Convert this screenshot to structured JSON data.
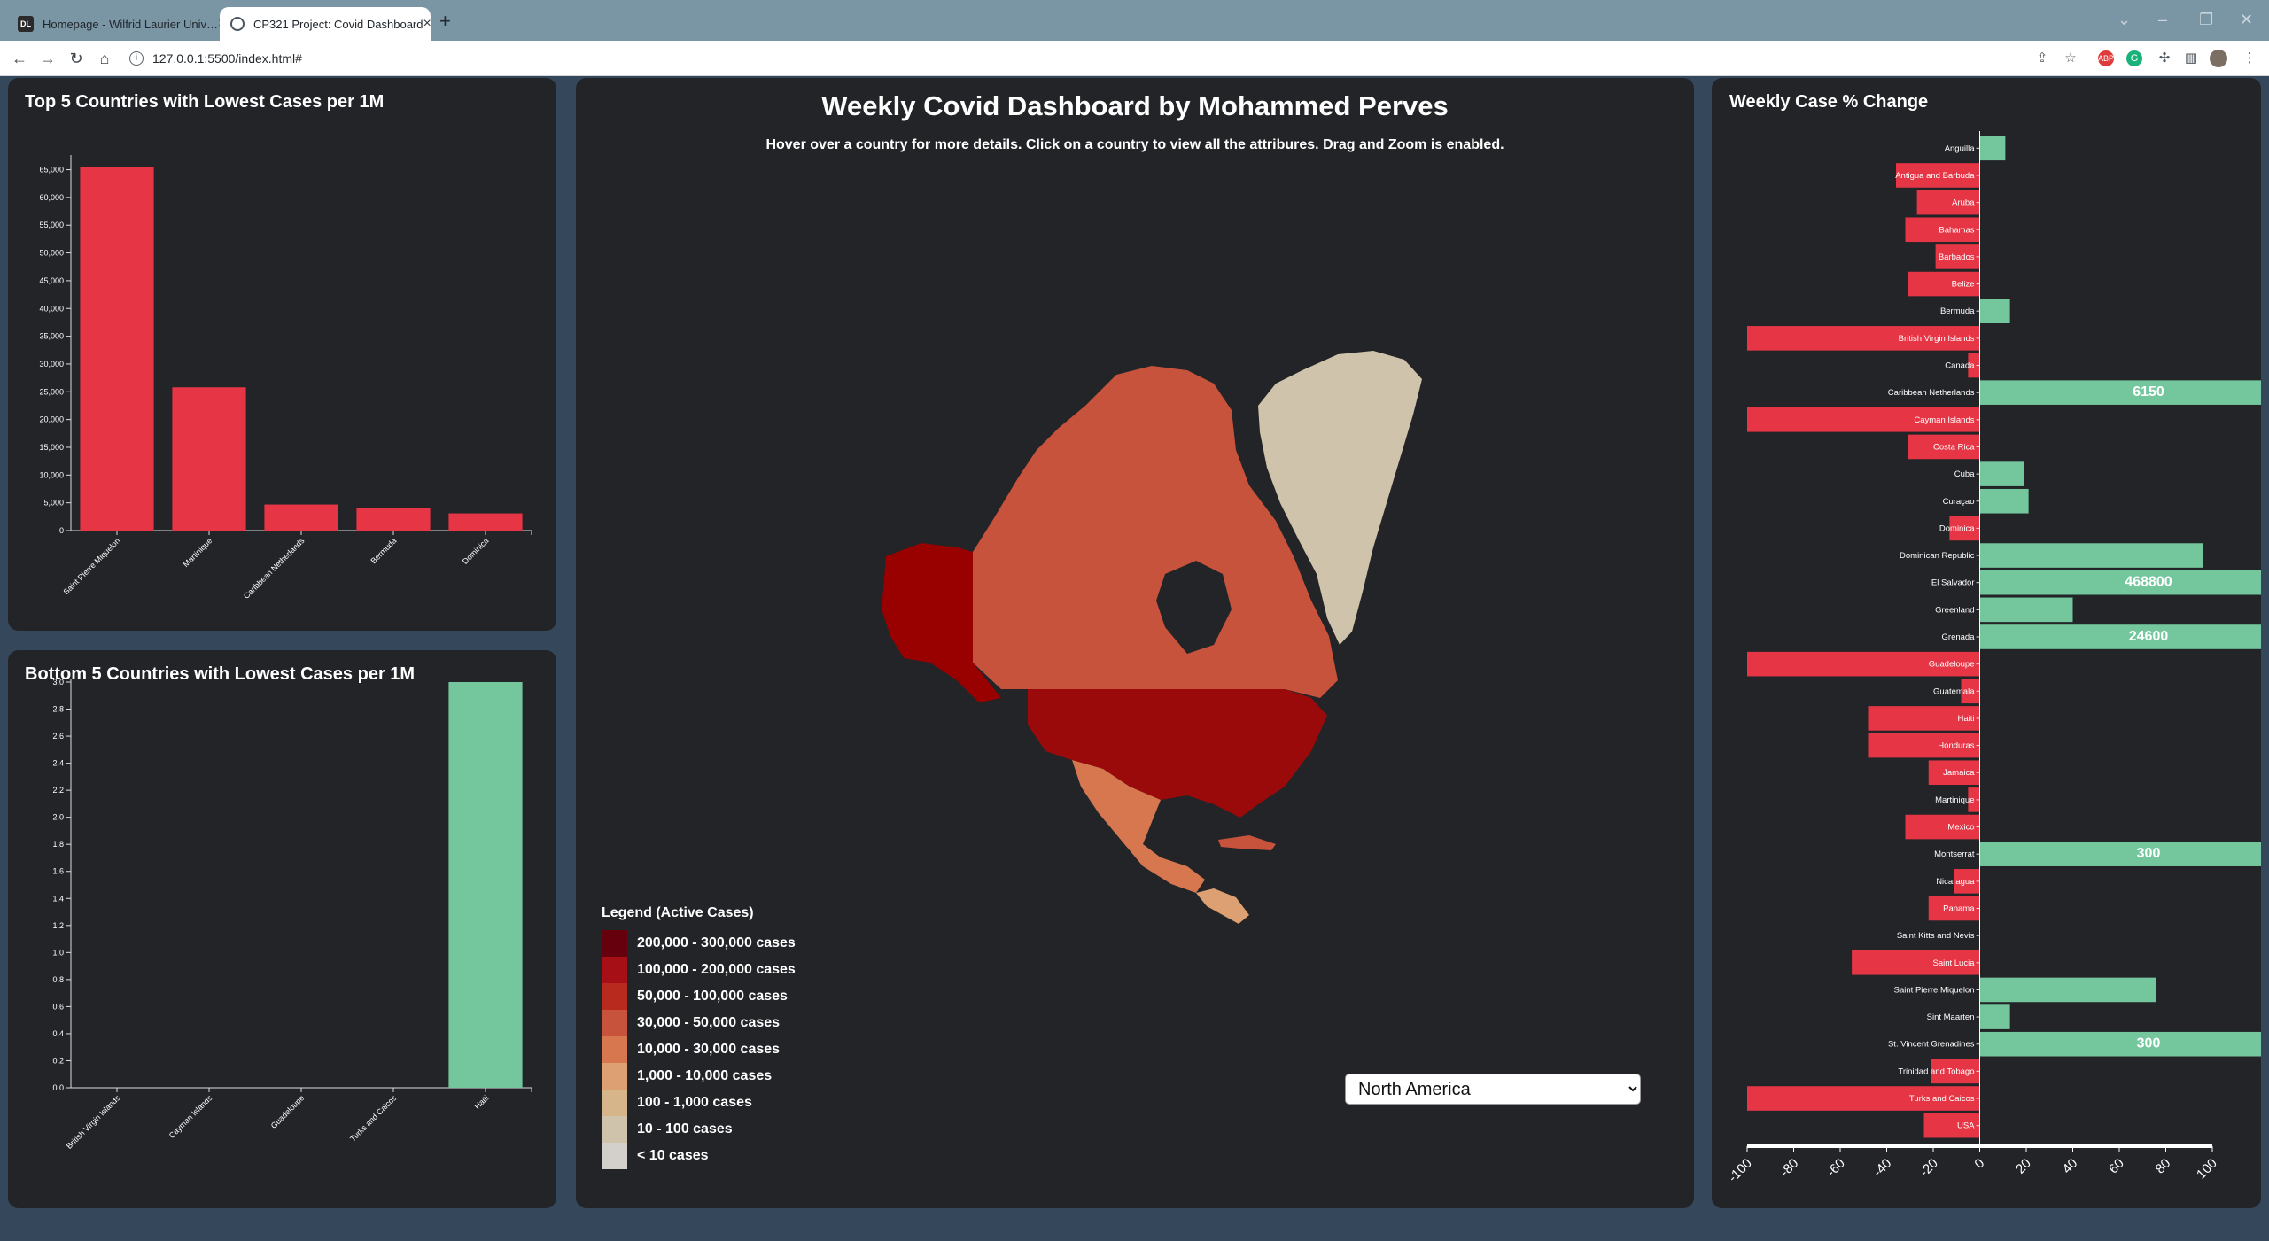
{
  "browser": {
    "tabs": [
      {
        "title": "Homepage - Wilfrid Laurier Univ…",
        "favicon": "laurier-favicon"
      },
      {
        "title": "CP321 Project: Covid Dashboard",
        "favicon": "globe-icon"
      }
    ],
    "url": "127.0.0.1:5500/index.html#"
  },
  "colors": {
    "page_bg": "#34475b",
    "panel_bg": "#222427",
    "negative_red": "#e63646",
    "positive_green": "#74c69d",
    "legend_scale": [
      "#67000d",
      "#a50f15",
      "#b92a1e",
      "#c8533c",
      "#d77750",
      "#dca072",
      "#d7b58b",
      "#cfc3ab",
      "#d3d0cb"
    ]
  },
  "dashboard": {
    "title": "Weekly Covid Dashboard by Mohammed Perves",
    "subtitle": "Hover over a country for more details. Click on a country to view all the attribures. Drag and Zoom is enabled.",
    "region_options": [
      "North America"
    ],
    "selected_region": "North America"
  },
  "legend": {
    "title": "Legend (Active Cases)",
    "items": [
      "200,000 - 300,000 cases",
      "100,000 - 200,000 cases",
      "50,000 - 100,000 cases",
      "30,000 - 50,000 cases",
      "10,000 - 30,000 cases",
      "1,000 - 10,000 cases",
      "100 - 1,000 cases",
      "10 - 100 cases",
      "< 10 cases"
    ]
  },
  "chart_data": [
    {
      "id": "top5",
      "type": "bar",
      "title": "Top 5 Countries with Lowest Cases per 1M",
      "categories": [
        "Saint Pierre Miquelon",
        "Martinique",
        "Caribbean Netherlands",
        "Bermuda",
        "Dominica"
      ],
      "values": [
        65500,
        25800,
        4700,
        4000,
        3100
      ],
      "ylim": [
        0,
        67000
      ],
      "yticks": [
        0,
        5000,
        10000,
        15000,
        20000,
        25000,
        30000,
        35000,
        40000,
        45000,
        50000,
        55000,
        60000,
        65000
      ],
      "ytick_labels": [
        "0",
        "5,000",
        "10,000",
        "15,000",
        "20,000",
        "25,000",
        "30,000",
        "35,000",
        "40,000",
        "45,000",
        "50,000",
        "55,000",
        "60,000",
        "65,000"
      ],
      "color": "#e63646"
    },
    {
      "id": "bottom5",
      "type": "bar",
      "title": "Bottom 5 Countries with Lowest Cases per 1M",
      "categories": [
        "British Virgin Islands",
        "Cayman Islands",
        "Guadeloupe",
        "Turks and Caicos",
        "Haiti"
      ],
      "values": [
        0,
        0,
        0,
        0,
        3.0
      ],
      "ylim": [
        0,
        3.0
      ],
      "yticks": [
        0,
        0.2,
        0.4,
        0.6,
        0.8,
        1.0,
        1.2,
        1.4,
        1.6,
        1.8,
        2.0,
        2.2,
        2.4,
        2.6,
        2.8,
        3.0
      ],
      "ytick_labels": [
        "0.0",
        "0.2",
        "0.4",
        "0.6",
        "0.8",
        "1.0",
        "1.2",
        "1.4",
        "1.6",
        "1.8",
        "2.0",
        "2.2",
        "2.4",
        "2.6",
        "2.8",
        "3.0"
      ],
      "color": "#74c69d"
    },
    {
      "id": "weekly",
      "type": "bar",
      "orientation": "horizontal",
      "title": "Weekly Case % Change",
      "categories": [
        "Anguilla",
        "Antigua and Barbuda",
        "Aruba",
        "Bahamas",
        "Barbados",
        "Belize",
        "Bermuda",
        "British Virgin Islands",
        "Canada",
        "Caribbean Netherlands",
        "Cayman Islands",
        "Costa Rica",
        "Cuba",
        "Curaçao",
        "Dominica",
        "Dominican Republic",
        "El Salvador",
        "Greenland",
        "Grenada",
        "Guadeloupe",
        "Guatemala",
        "Haiti",
        "Honduras",
        "Jamaica",
        "Martinique",
        "Mexico",
        "Montserrat",
        "Nicaragua",
        "Panama",
        "Saint Kitts and Nevis",
        "Saint Lucia",
        "Saint Pierre Miquelon",
        "Sint Maarten",
        "St. Vincent Grenadines",
        "Trinidad and Tobago",
        "Turks and Caicos",
        "USA"
      ],
      "values": [
        11,
        -36,
        -27,
        -32,
        -19,
        -31,
        13,
        -100,
        -5,
        6150,
        -100,
        -31,
        19,
        21,
        -13,
        96,
        468800,
        40,
        24600,
        -100,
        -8,
        -48,
        -48,
        -22,
        -5,
        -32,
        300,
        -11,
        -22,
        0,
        -55,
        76,
        13,
        300,
        -21,
        -100,
        -24
      ],
      "value_labels": [
        "",
        "",
        "",
        "",
        "",
        "",
        "",
        "",
        "",
        "6150",
        "",
        "",
        "",
        "",
        "",
        "",
        "468800",
        "",
        "24600",
        "",
        "",
        "",
        "",
        "",
        "",
        "",
        "300",
        "",
        "",
        "",
        "",
        "",
        "",
        "300",
        "",
        "",
        ""
      ],
      "xlim": [
        -100,
        100
      ],
      "xticks": [
        -100,
        -80,
        -60,
        -40,
        -20,
        0,
        20,
        40,
        60,
        80,
        100
      ],
      "xtick_labels": [
        "-100",
        "-80",
        "-60",
        "-40",
        "-20",
        "0",
        "20",
        "40",
        "60",
        "80",
        "100"
      ]
    }
  ]
}
